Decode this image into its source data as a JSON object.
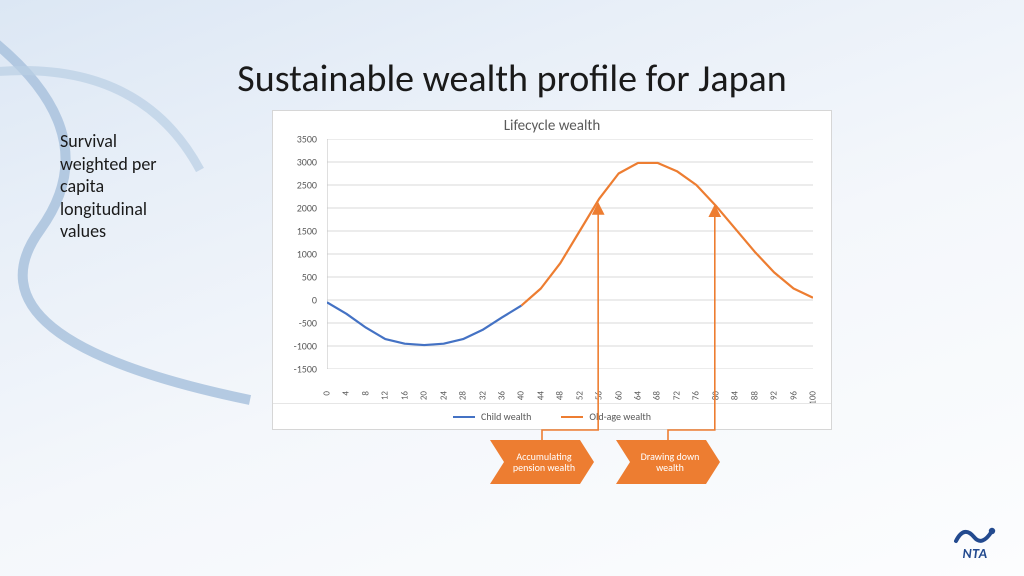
{
  "slide": {
    "title": "Sustainable wealth profile for Japan",
    "side_label": "Survival weighted per capita longitudinal values",
    "background_top": "#dce7f4",
    "background_bottom": "#fcfdfe",
    "bg_curve_color": "#a9c2dd"
  },
  "chart": {
    "type": "line",
    "title": "Lifecycle wealth",
    "title_fontsize": 15,
    "title_color": "#5a5a5a",
    "background_color": "#ffffff",
    "border_color": "#d6d6d6",
    "grid_color": "#d9d9d9",
    "axis_line_color": "#bfbfbf",
    "ylim": [
      -1500,
      3500
    ],
    "ytick_step": 500,
    "yticks": [
      -1500,
      -1000,
      -500,
      0,
      500,
      1000,
      1500,
      2000,
      2500,
      3000,
      3500
    ],
    "xlim": [
      0,
      100
    ],
    "xtick_step": 4,
    "xticks": [
      0,
      4,
      8,
      12,
      16,
      20,
      24,
      28,
      32,
      36,
      40,
      44,
      48,
      52,
      56,
      60,
      64,
      68,
      72,
      76,
      80,
      84,
      88,
      92,
      96,
      100
    ],
    "label_fontsize": 10,
    "label_color": "#5a5a5a",
    "line_width": 2.2,
    "series": [
      {
        "name": "Child wealth",
        "color": "#4472c4",
        "data": [
          {
            "x": 0,
            "y": -50
          },
          {
            "x": 4,
            "y": -300
          },
          {
            "x": 8,
            "y": -600
          },
          {
            "x": 12,
            "y": -850
          },
          {
            "x": 16,
            "y": -950
          },
          {
            "x": 20,
            "y": -980
          },
          {
            "x": 24,
            "y": -950
          },
          {
            "x": 28,
            "y": -850
          },
          {
            "x": 32,
            "y": -650
          },
          {
            "x": 36,
            "y": -380
          },
          {
            "x": 40,
            "y": -120
          }
        ]
      },
      {
        "name": "Old-age wealth",
        "color": "#ed7d31",
        "data": [
          {
            "x": 40,
            "y": -120
          },
          {
            "x": 44,
            "y": 250
          },
          {
            "x": 48,
            "y": 800
          },
          {
            "x": 52,
            "y": 1500
          },
          {
            "x": 56,
            "y": 2200
          },
          {
            "x": 60,
            "y": 2750
          },
          {
            "x": 64,
            "y": 2980
          },
          {
            "x": 68,
            "y": 2980
          },
          {
            "x": 72,
            "y": 2800
          },
          {
            "x": 76,
            "y": 2500
          },
          {
            "x": 80,
            "y": 2050
          },
          {
            "x": 84,
            "y": 1550
          },
          {
            "x": 88,
            "y": 1050
          },
          {
            "x": 92,
            "y": 600
          },
          {
            "x": 96,
            "y": 250
          },
          {
            "x": 100,
            "y": 50
          }
        ]
      }
    ],
    "annotations": [
      {
        "label": "Accumulating pension wealth",
        "color": "#ed7d31",
        "arrow_from_x": 56,
        "arrow_to_x": 56,
        "arrow_to_y": 2100
      },
      {
        "label": "Drawing down wealth",
        "color": "#ed7d31",
        "arrow_from_x": 80,
        "arrow_to_x": 80,
        "arrow_to_y": 2050
      }
    ],
    "legend": {
      "position": "bottom",
      "items": [
        "Child wealth",
        "Old-age wealth"
      ]
    }
  },
  "logo": {
    "text": "NTA",
    "color": "#234a8f"
  }
}
